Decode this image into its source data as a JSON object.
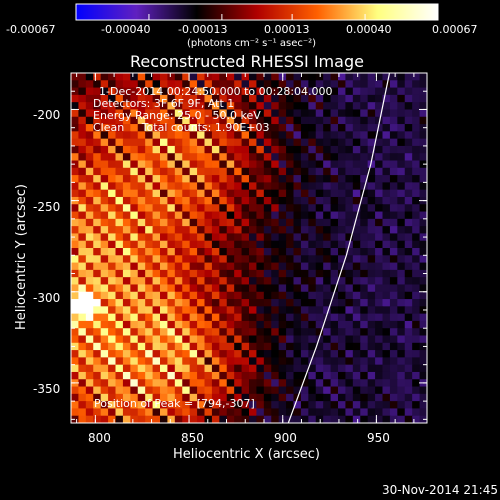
{
  "chart_data": {
    "type": "heatmap",
    "title": "Reconstructed RHESSI Image",
    "xlabel": "Heliocentric X (arcsec)",
    "ylabel": "Heliocentric Y (arcsec)",
    "xlim": [
      787,
      977
    ],
    "ylim": [
      -372,
      -180
    ],
    "x_ticks": [
      "800",
      "850",
      "900",
      "950"
    ],
    "x_tick_values": [
      800,
      850,
      900,
      950
    ],
    "y_ticks": [
      "-200",
      "-250",
      "-300",
      "-350"
    ],
    "y_tick_values": [
      -200,
      -250,
      -300,
      -350
    ],
    "colorbar": {
      "range": [
        -0.00067,
        0.00067
      ],
      "ticks": [
        "-0.00067",
        "-0.00040",
        "-0.00013",
        "0.00013",
        "0.00040",
        "0.00067"
      ],
      "tick_values": [
        -0.00067,
        -0.0004,
        -0.00013,
        0.00013,
        0.0004,
        0.00067
      ],
      "unit_label": "(photons cm⁻² s⁻¹ asec⁻²)",
      "colors": [
        "#0000ff",
        "#6020c0",
        "#000000",
        "#b00000",
        "#ff6000",
        "#ffff80",
        "#ffffff"
      ]
    },
    "info_lines": [
      "1-Dec-2014 00:24:50.000 to 00:28:04.000",
      "Detectors: 3F 6F 9F, Att 1",
      "Energy Range: 25.0 - 50.0 keV",
      "Clean     Total counts: 1.90E+03"
    ],
    "peak_label": "Position of Peak = [794,-307]",
    "peak_position": [
      794,
      -307
    ],
    "limb_curve": [
      [
        903,
        -372
      ],
      [
        918,
        -330
      ],
      [
        934,
        -280
      ],
      [
        947,
        -230
      ],
      [
        957,
        -180
      ]
    ],
    "grid": false
  },
  "footer": {
    "timestamp": "30-Nov-2014 21:45"
  }
}
